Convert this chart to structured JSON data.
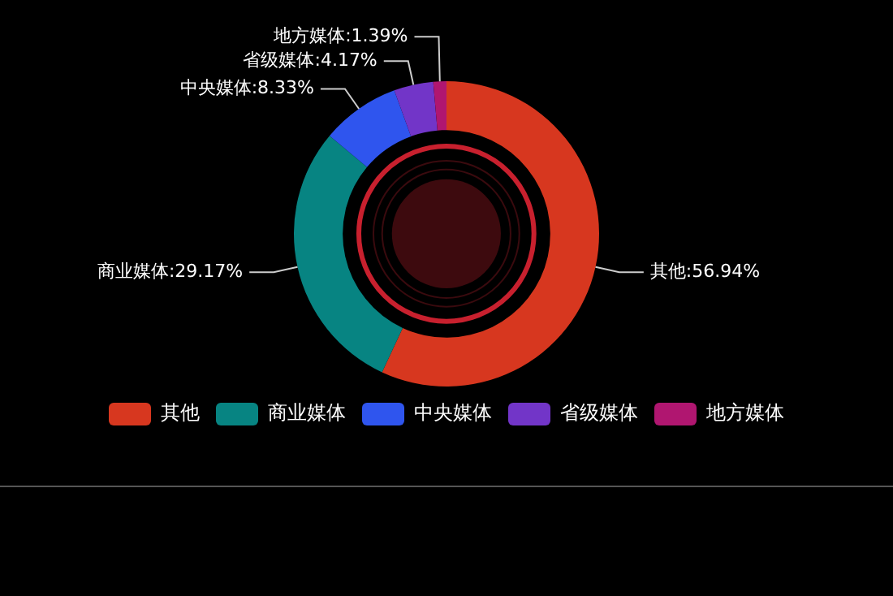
{
  "chart_data": {
    "type": "donut",
    "categories": [
      "其他",
      "商业媒体",
      "中央媒体",
      "省级媒体",
      "地方媒体"
    ],
    "values": [
      56.94,
      29.17,
      8.33,
      4.17,
      1.39
    ],
    "value_labels": [
      ":56.94%",
      ":29.17%",
      ":8.33%",
      ":4.17%",
      ":1.39%"
    ],
    "colors": [
      "#d7371f",
      "#078482",
      "#2f55ee",
      "#7235c8",
      "#b01670"
    ],
    "legend": "bottom"
  }
}
